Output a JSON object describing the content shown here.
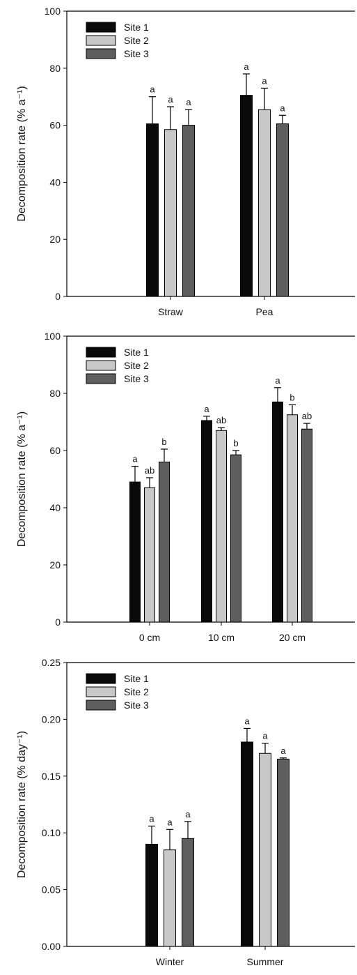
{
  "colors": {
    "series": [
      "#0a0a0a",
      "#c8c8c8",
      "#5e5e5e"
    ]
  },
  "chart_data": [
    {
      "type": "bar",
      "ylabel": "Decomposition rate (% a⁻¹)",
      "ylim": [
        0,
        100
      ],
      "yticks": [
        0,
        20,
        40,
        60,
        80,
        100
      ],
      "ytick_labels": [
        "0",
        "20",
        "40",
        "60",
        "80",
        "100"
      ],
      "categories": [
        "Straw",
        "Pea"
      ],
      "legend": "top-left",
      "series": [
        {
          "name": "Site 1",
          "values": [
            60.5,
            70.5
          ],
          "errors": [
            9.5,
            7.5
          ],
          "sig": [
            "a",
            "a"
          ]
        },
        {
          "name": "Site 2",
          "values": [
            58.5,
            65.5
          ],
          "errors": [
            8.0,
            7.5
          ],
          "sig": [
            "a",
            "a"
          ]
        },
        {
          "name": "Site 3",
          "values": [
            60.0,
            60.5
          ],
          "errors": [
            5.5,
            3.0
          ],
          "sig": [
            "a",
            "a"
          ]
        }
      ]
    },
    {
      "type": "bar",
      "ylabel": "Decomposition rate (% a⁻¹)",
      "ylim": [
        0,
        100
      ],
      "yticks": [
        0,
        20,
        40,
        60,
        80,
        100
      ],
      "ytick_labels": [
        "0",
        "20",
        "40",
        "60",
        "80",
        "100"
      ],
      "categories": [
        "0 cm",
        "10 cm",
        "20 cm"
      ],
      "legend": "top-left",
      "series": [
        {
          "name": "Site 1",
          "values": [
            49.0,
            70.5,
            77.0
          ],
          "errors": [
            5.5,
            1.5,
            5.0
          ],
          "sig": [
            "a",
            "a",
            "a"
          ]
        },
        {
          "name": "Site 2",
          "values": [
            47.0,
            67.0,
            72.5
          ],
          "errors": [
            3.5,
            1.0,
            3.5
          ],
          "sig": [
            "ab",
            "ab",
            "b"
          ]
        },
        {
          "name": "Site 3",
          "values": [
            56.0,
            58.5,
            67.5
          ],
          "errors": [
            4.5,
            1.5,
            2.0
          ],
          "sig": [
            "b",
            "b",
            "ab"
          ]
        }
      ]
    },
    {
      "type": "bar",
      "ylabel": "Decomposition rate (% day⁻¹)",
      "ylim": [
        0,
        0.25
      ],
      "yticks": [
        0,
        0.05,
        0.1,
        0.15,
        0.2,
        0.25
      ],
      "ytick_labels": [
        "0.00",
        "0.05",
        "0.10",
        "0.15",
        "0.20",
        "0.25"
      ],
      "categories": [
        "Winter",
        "Summer"
      ],
      "legend": "top-left",
      "series": [
        {
          "name": "Site 1",
          "values": [
            0.09,
            0.18
          ],
          "errors": [
            0.016,
            0.012
          ],
          "sig": [
            "a",
            "a"
          ]
        },
        {
          "name": "Site 2",
          "values": [
            0.085,
            0.17
          ],
          "errors": [
            0.018,
            0.009
          ],
          "sig": [
            "a",
            "a"
          ]
        },
        {
          "name": "Site 3",
          "values": [
            0.095,
            0.165
          ],
          "errors": [
            0.015,
            0.001
          ],
          "sig": [
            "a",
            "a"
          ]
        }
      ]
    }
  ]
}
